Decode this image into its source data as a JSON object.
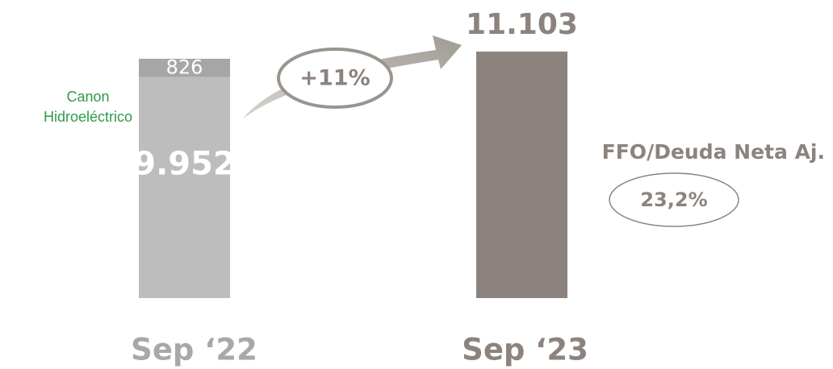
{
  "chart_data": {
    "type": "bar",
    "stacked": true,
    "categories": [
      "Sep ‘22",
      "Sep ‘23"
    ],
    "series": [
      {
        "colors": [
          "#bdbdbd",
          "#8c837e"
        ],
        "values": [
          9952,
          11103
        ],
        "value_labels": [
          "9.952",
          "11.103"
        ]
      },
      {
        "name": "Canon Hidroeléctrico",
        "color": "#a6a6a6",
        "values": [
          826,
          null
        ],
        "value_labels": [
          "826",
          null
        ]
      }
    ],
    "annotations": {
      "change": "+11%",
      "ratio_title": "FFO/Deuda Neta Aj.",
      "ratio_value": "23,2%"
    }
  }
}
